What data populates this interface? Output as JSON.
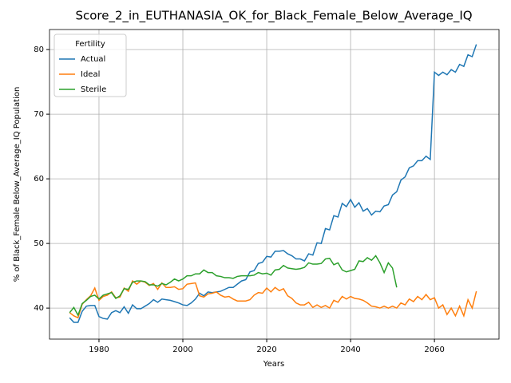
{
  "chart_data": {
    "type": "line",
    "title": "Score_2_in_EUTHANASIA_OK_for_Black_Female_Below_Average_IQ",
    "x_label": "Years",
    "y_label": "% of Black_Female Below_Average_IQ Population",
    "legend_title": "Fertility",
    "legend_position": "upper left",
    "grid": true,
    "x": [
      1973,
      1974,
      1975,
      1976,
      1977,
      1978,
      1979,
      1980,
      1981,
      1982,
      1983,
      1984,
      1985,
      1986,
      1987,
      1988,
      1989,
      1990,
      1991,
      1992,
      1993,
      1994,
      1995,
      1996,
      1997,
      1998,
      1999,
      2000,
      2001,
      2002,
      2003,
      2004,
      2005,
      2006,
      2007,
      2008,
      2009,
      2010,
      2011,
      2012,
      2013,
      2014,
      2015,
      2016,
      2017,
      2018,
      2019,
      2020,
      2021,
      2022,
      2023,
      2024,
      2025,
      2026,
      2027,
      2028,
      2029,
      2030,
      2031,
      2032,
      2033,
      2034,
      2035,
      2036,
      2037,
      2038,
      2039,
      2040,
      2041,
      2042,
      2043,
      2044,
      2045,
      2046,
      2047,
      2048,
      2049,
      2050,
      2051,
      2052,
      2053,
      2054,
      2055,
      2056,
      2057,
      2058,
      2059,
      2060,
      2061,
      2062,
      2063,
      2064,
      2065,
      2066,
      2067,
      2068,
      2069,
      2070
    ],
    "series": [
      {
        "name": "Actual",
        "color": "#1f77b4",
        "values": [
          38.5,
          37.8,
          37.8,
          39.5,
          40.3,
          40.4,
          40.4,
          38.7,
          38.4,
          38.3,
          39.3,
          39.6,
          39.3,
          40.2,
          39.2,
          40.5,
          39.9,
          39.9,
          40.3,
          40.7,
          41.3,
          40.9,
          41.4,
          41.3,
          41.2,
          41.0,
          40.8,
          40.5,
          40.4,
          40.8,
          41.4,
          42.3,
          41.9,
          42.5,
          42.4,
          42.5,
          42.6,
          42.9,
          43.2,
          43.2,
          43.7,
          44.2,
          44.4,
          45.6,
          45.8,
          46.9,
          47.1,
          48.0,
          47.9,
          48.8,
          48.8,
          48.9,
          48.4,
          48.1,
          47.6,
          47.6,
          47.3,
          48.4,
          48.2,
          50.1,
          50.0,
          52.3,
          52.1,
          54.3,
          54.1,
          56.2,
          55.7,
          56.8,
          55.6,
          56.3,
          55.0,
          55.4,
          54.4,
          55.0,
          54.9,
          55.8,
          56.0,
          57.5,
          58.0,
          59.8,
          60.3,
          61.7,
          62.0,
          62.8,
          62.8,
          63.5,
          63.0,
          76.5,
          76.0,
          76.5,
          76.1,
          76.9,
          76.5,
          77.7,
          77.4,
          79.2,
          78.9,
          80.8
        ]
      },
      {
        "name": "Ideal",
        "color": "#ff7f0e",
        "values": [
          39.3,
          38.8,
          38.5,
          40.6,
          41.3,
          41.9,
          43.1,
          41.2,
          41.8,
          42.0,
          42.5,
          41.6,
          41.7,
          43.1,
          42.6,
          44.2,
          43.7,
          44.2,
          44.0,
          43.5,
          43.8,
          42.9,
          43.9,
          43.2,
          43.2,
          43.3,
          42.9,
          43.0,
          43.7,
          43.8,
          43.9,
          41.9,
          41.7,
          42.2,
          42.3,
          42.5,
          42.0,
          41.7,
          41.8,
          41.4,
          41.1,
          41.1,
          41.1,
          41.3,
          42.0,
          42.4,
          42.3,
          43.1,
          42.5,
          43.2,
          42.7,
          43.0,
          41.9,
          41.5,
          40.8,
          40.5,
          40.5,
          40.9,
          40.1,
          40.5,
          40.1,
          40.4,
          40.0,
          41.2,
          40.9,
          41.8,
          41.4,
          41.8,
          41.5,
          41.4,
          41.2,
          40.8,
          40.3,
          40.2,
          40.0,
          40.3,
          40.0,
          40.3,
          40.0,
          40.8,
          40.5,
          41.4,
          41.0,
          41.8,
          41.3,
          42.1,
          41.3,
          41.6,
          40.0,
          40.5,
          39.0,
          40.0,
          38.8,
          40.3,
          38.8,
          41.3,
          40.0,
          42.6
        ]
      },
      {
        "name": "Sterile",
        "color": "#2ca02c",
        "values": [
          39.3,
          40.1,
          38.9,
          40.7,
          41.2,
          41.8,
          42.0,
          41.4,
          42.0,
          42.2,
          42.4,
          41.5,
          41.9,
          43.0,
          42.9,
          44.0,
          44.2,
          44.2,
          44.1,
          43.6,
          43.6,
          43.4,
          43.8,
          43.6,
          44.0,
          44.5,
          44.2,
          44.5,
          45.0,
          45.0,
          45.3,
          45.3,
          45.9,
          45.5,
          45.5,
          45.0,
          44.9,
          44.7,
          44.7,
          44.6,
          44.9,
          45.0,
          45.0,
          45.0,
          45.1,
          45.5,
          45.3,
          45.4,
          45.1,
          45.9,
          46.0,
          46.6,
          46.2,
          46.1,
          46.0,
          46.1,
          46.3,
          47.0,
          46.8,
          46.8,
          46.9,
          47.6,
          47.7,
          46.7,
          47.0,
          45.9,
          45.6,
          45.8,
          46.0,
          47.3,
          47.2,
          47.8,
          47.4,
          48.1,
          47.0,
          45.5,
          47.0,
          46.2,
          43.2,
          null,
          null,
          null,
          null,
          null,
          null,
          null,
          null,
          null,
          null,
          null,
          null,
          null,
          null,
          null,
          null,
          null,
          null,
          null
        ]
      }
    ],
    "xlim": [
      1968.2,
      2075.4
    ],
    "ylim": [
      35.2,
      83.1
    ],
    "xticks": [
      1980,
      2000,
      2020,
      2040,
      2060
    ],
    "yticks": [
      40,
      50,
      60,
      70,
      80
    ]
  }
}
